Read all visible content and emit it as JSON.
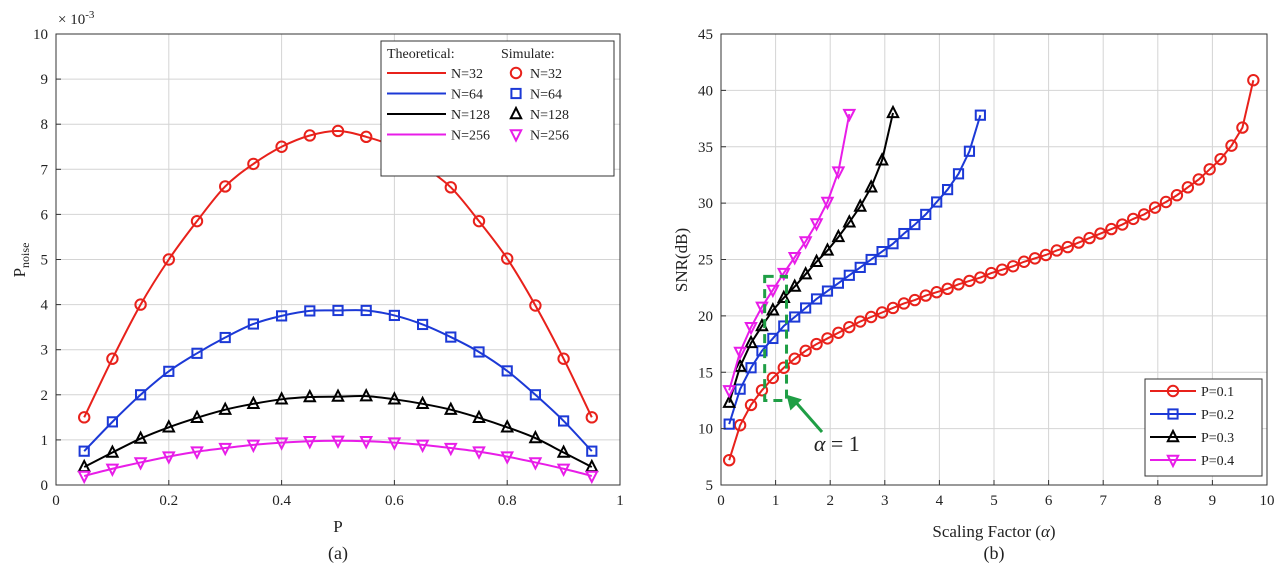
{
  "figure": {
    "panel_a_caption": "(a)",
    "panel_b_caption": "(b)"
  },
  "chart_data": [
    {
      "type": "line",
      "panel": "(a)",
      "xlabel": "P",
      "ylabel": "P",
      "ylabel_subscript": "noise",
      "y_scale_text": "× 10",
      "y_scale_exponent": "-3",
      "xlim": [
        0,
        1
      ],
      "ylim": [
        0,
        10
      ],
      "xticks": [
        "0",
        "0.2",
        "0.4",
        "0.6",
        "0.8",
        "1"
      ],
      "xtick_values": [
        0,
        0.2,
        0.4,
        0.6,
        0.8,
        1
      ],
      "yticks": [
        "0",
        "1",
        "2",
        "3",
        "4",
        "5",
        "6",
        "7",
        "8",
        "9",
        "10"
      ],
      "ytick_values": [
        0,
        1,
        2,
        3,
        4,
        5,
        6,
        7,
        8,
        9,
        10
      ],
      "grid": true,
      "legend": {
        "placement": "top-right",
        "theoretical_heading": "Theoretical:",
        "simulate_heading": "Simulate:"
      },
      "x": [
        0.05,
        0.1,
        0.15,
        0.2,
        0.25,
        0.3,
        0.35,
        0.4,
        0.45,
        0.5,
        0.55,
        0.6,
        0.65,
        0.7,
        0.75,
        0.8,
        0.85,
        0.9,
        0.95
      ],
      "series": [
        {
          "name": "N=32",
          "color": "#e8211b",
          "marker": "circle",
          "values": [
            1.5,
            2.8,
            4.0,
            5.0,
            5.85,
            6.62,
            7.12,
            7.5,
            7.75,
            7.85,
            7.72,
            7.5,
            7.08,
            6.6,
            5.85,
            5.02,
            3.98,
            2.8,
            1.5
          ]
        },
        {
          "name": "N=64",
          "color": "#1c39d6",
          "marker": "square",
          "values": [
            0.75,
            1.4,
            2.0,
            2.52,
            2.92,
            3.27,
            3.57,
            3.75,
            3.86,
            3.87,
            3.87,
            3.76,
            3.56,
            3.28,
            2.95,
            2.53,
            2.0,
            1.42,
            0.75
          ]
        },
        {
          "name": "N=128",
          "color": "#000000",
          "marker": "triangle-up",
          "values": [
            0.4,
            0.72,
            1.03,
            1.28,
            1.49,
            1.67,
            1.8,
            1.9,
            1.95,
            1.96,
            1.97,
            1.9,
            1.8,
            1.67,
            1.49,
            1.28,
            1.04,
            0.72,
            0.4
          ]
        },
        {
          "name": "N=256",
          "color": "#e81de8",
          "marker": "triangle-down",
          "values": [
            0.2,
            0.36,
            0.5,
            0.63,
            0.74,
            0.82,
            0.89,
            0.94,
            0.97,
            0.98,
            0.97,
            0.94,
            0.89,
            0.82,
            0.74,
            0.63,
            0.5,
            0.36,
            0.2
          ]
        }
      ]
    },
    {
      "type": "line",
      "panel": "(b)",
      "xlabel": "Scaling Factor (",
      "xlabel_symbol": "α",
      "xlabel_close": ")",
      "ylabel": "SNR(dB)",
      "xlim": [
        0,
        10
      ],
      "ylim": [
        5,
        45
      ],
      "xticks": [
        "0",
        "1",
        "2",
        "3",
        "4",
        "5",
        "6",
        "7",
        "8",
        "9",
        "10"
      ],
      "xtick_values": [
        0,
        1,
        2,
        3,
        4,
        5,
        6,
        7,
        8,
        9,
        10
      ],
      "yticks": [
        "5",
        "10",
        "15",
        "20",
        "25",
        "30",
        "35",
        "40",
        "45"
      ],
      "ytick_values": [
        5,
        10,
        15,
        20,
        25,
        30,
        35,
        40,
        45
      ],
      "grid": true,
      "legend": {
        "placement": "bottom-right"
      },
      "annotation": {
        "symbol": "α",
        "text": " = 1",
        "box_x_range": [
          0.8,
          1.2
        ],
        "box_y_range": [
          12.5,
          23.5
        ],
        "arrow_tip": [
          1.2,
          13.0
        ],
        "arrow_tail": [
          1.85,
          9.7
        ],
        "label_at": [
          1.7,
          8.0
        ],
        "color": "#1f9e45"
      },
      "series": [
        {
          "name": "P=0.1",
          "color": "#e8211b",
          "marker": "circle",
          "x": [
            0.15,
            0.35,
            0.55,
            0.75,
            0.95,
            1.15,
            1.35,
            1.55,
            1.75,
            1.95,
            2.15,
            2.35,
            2.55,
            2.75,
            2.95,
            3.15,
            3.35,
            3.55,
            3.75,
            3.95,
            4.15,
            4.35,
            4.55,
            4.75,
            4.95,
            5.15,
            5.35,
            5.55,
            5.75,
            5.95,
            6.15,
            6.35,
            6.55,
            6.75,
            6.95,
            7.15,
            7.35,
            7.55,
            7.75,
            7.95,
            8.15,
            8.35,
            8.55,
            8.75,
            8.95,
            9.15,
            9.35,
            9.55,
            9.75
          ],
          "values": [
            7.2,
            10.3,
            12.1,
            13.4,
            14.5,
            15.4,
            16.2,
            16.9,
            17.5,
            18.0,
            18.5,
            19.0,
            19.5,
            19.9,
            20.3,
            20.7,
            21.1,
            21.4,
            21.8,
            22.1,
            22.4,
            22.8,
            23.1,
            23.4,
            23.8,
            24.1,
            24.4,
            24.8,
            25.1,
            25.4,
            25.8,
            26.1,
            26.5,
            26.9,
            27.3,
            27.7,
            28.1,
            28.6,
            29.0,
            29.6,
            30.1,
            30.7,
            31.4,
            32.1,
            33.0,
            33.9,
            35.1,
            36.7,
            40.9
          ]
        },
        {
          "name": "P=0.2",
          "color": "#1c39d6",
          "marker": "square",
          "x": [
            0.15,
            0.35,
            0.55,
            0.75,
            0.95,
            1.15,
            1.35,
            1.55,
            1.75,
            1.95,
            2.15,
            2.35,
            2.55,
            2.75,
            2.95,
            3.15,
            3.35,
            3.55,
            3.75,
            3.95,
            4.15,
            4.35,
            4.55,
            4.75
          ],
          "values": [
            10.4,
            13.5,
            15.4,
            16.9,
            18.0,
            19.1,
            19.9,
            20.7,
            21.5,
            22.2,
            22.9,
            23.6,
            24.3,
            25.0,
            25.7,
            26.4,
            27.3,
            28.1,
            29.0,
            30.1,
            31.2,
            32.6,
            34.6,
            37.8
          ]
        },
        {
          "name": "P=0.3",
          "color": "#000000",
          "marker": "triangle-up",
          "x": [
            0.15,
            0.35,
            0.55,
            0.75,
            0.95,
            1.15,
            1.35,
            1.55,
            1.75,
            1.95,
            2.15,
            2.35,
            2.55,
            2.75,
            2.95,
            3.15
          ],
          "values": [
            12.3,
            15.5,
            17.6,
            19.1,
            20.5,
            21.6,
            22.6,
            23.7,
            24.8,
            25.8,
            27.0,
            28.3,
            29.7,
            31.4,
            33.8,
            38.0
          ]
        },
        {
          "name": "P=0.4",
          "color": "#e81de8",
          "marker": "triangle-down",
          "x": [
            0.15,
            0.35,
            0.55,
            0.75,
            0.95,
            1.15,
            1.35,
            1.55,
            1.75,
            1.95,
            2.15,
            2.35
          ],
          "values": [
            13.4,
            16.8,
            19.0,
            20.8,
            22.3,
            23.8,
            25.2,
            26.6,
            28.2,
            30.1,
            32.8,
            37.9
          ]
        }
      ]
    }
  ]
}
